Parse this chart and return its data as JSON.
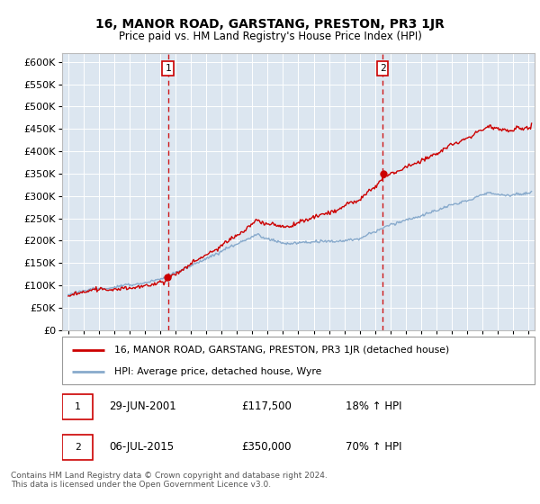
{
  "title": "16, MANOR ROAD, GARSTANG, PRESTON, PR3 1JR",
  "subtitle": "Price paid vs. HM Land Registry's House Price Index (HPI)",
  "ylim": [
    0,
    620000
  ],
  "yticks": [
    0,
    50000,
    100000,
    150000,
    200000,
    250000,
    300000,
    350000,
    400000,
    450000,
    500000,
    550000,
    600000
  ],
  "ylabels": [
    "£0",
    "£50K",
    "£100K",
    "£150K",
    "£200K",
    "£250K",
    "£300K",
    "£350K",
    "£400K",
    "£450K",
    "£500K",
    "£550K",
    "£600K"
  ],
  "xlim": [
    1994.6,
    2025.4
  ],
  "xticks": [
    1995,
    1996,
    1997,
    1998,
    1999,
    2000,
    2001,
    2002,
    2003,
    2004,
    2005,
    2006,
    2007,
    2008,
    2009,
    2010,
    2011,
    2012,
    2013,
    2014,
    2015,
    2016,
    2017,
    2018,
    2019,
    2020,
    2021,
    2022,
    2023,
    2024,
    2025
  ],
  "marker1_x": 2001.5,
  "marker1_y": 117500,
  "marker1_label": "1",
  "marker1_date": "29-JUN-2001",
  "marker1_price": "£117,500",
  "marker1_hpi": "18% ↑ HPI",
  "marker2_x": 2015.5,
  "marker2_y": 350000,
  "marker2_label": "2",
  "marker2_date": "06-JUL-2015",
  "marker2_price": "£350,000",
  "marker2_hpi": "70% ↑ HPI",
  "legend_line1": "16, MANOR ROAD, GARSTANG, PRESTON, PR3 1JR (detached house)",
  "legend_line2": "HPI: Average price, detached house, Wyre",
  "footer": "Contains HM Land Registry data © Crown copyright and database right 2024.\nThis data is licensed under the Open Government Licence v3.0.",
  "line_color_red": "#cc0000",
  "line_color_blue": "#88aacc",
  "background_color": "#dce6f0",
  "grid_color": "#ffffff"
}
